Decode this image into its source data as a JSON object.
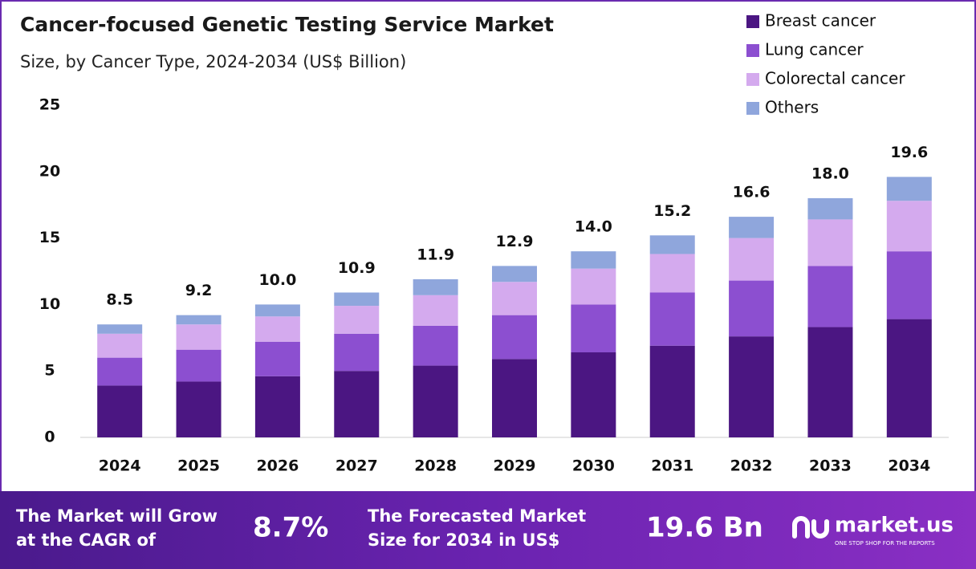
{
  "chart_data": {
    "type": "stacked_bar",
    "title": "Cancer-focused Genetic Testing Service Market",
    "subtitle": "Size, by Cancer Type, 2024-2034 (US$ Billion)",
    "categories": [
      "2024",
      "2025",
      "2026",
      "2027",
      "2028",
      "2029",
      "2030",
      "2031",
      "2032",
      "2033",
      "2034"
    ],
    "series": [
      {
        "name": "Breast cancer",
        "color": "#4b1682",
        "values": [
          3.9,
          4.2,
          4.6,
          5.0,
          5.4,
          5.9,
          6.4,
          6.9,
          7.6,
          8.3,
          8.9
        ]
      },
      {
        "name": "Lung cancer",
        "color": "#8c4fd0",
        "values": [
          2.1,
          2.4,
          2.6,
          2.8,
          3.0,
          3.3,
          3.6,
          4.0,
          4.2,
          4.6,
          5.1
        ]
      },
      {
        "name": "Colorectal cancer",
        "color": "#d4aaee",
        "values": [
          1.8,
          1.9,
          1.9,
          2.1,
          2.3,
          2.5,
          2.7,
          2.9,
          3.2,
          3.5,
          3.8
        ]
      },
      {
        "name": "Others",
        "color": "#8fa6dc",
        "values": [
          0.7,
          0.7,
          0.9,
          1.0,
          1.2,
          1.2,
          1.3,
          1.4,
          1.6,
          1.6,
          1.8
        ]
      }
    ],
    "totals": {
      "values": [
        8.5,
        9.2,
        10.0,
        10.9,
        11.9,
        12.9,
        14.0,
        15.2,
        16.6,
        18.0,
        19.6
      ],
      "value_labels": [
        "8.5",
        "9.2",
        "10.0",
        "10.9",
        "11.9",
        "12.9",
        "14.0",
        "15.2",
        "16.6",
        "18.0",
        "19.6"
      ]
    },
    "ylim": [
      0,
      25
    ],
    "yticks": [
      0,
      5,
      10,
      15,
      20,
      25
    ],
    "grid": false,
    "legend": "top-right"
  },
  "footer": {
    "cagr_text": [
      "The Market will Grow",
      "at the CAGR of"
    ],
    "cagr_value": "8.7%",
    "forecast_text": [
      "The Forecasted Market",
      "Size for 2034 in US$"
    ],
    "forecast_value": "19.6 Bn",
    "brand": "market.us",
    "tagline": "ONE STOP SHOP FOR THE REPORTS"
  }
}
